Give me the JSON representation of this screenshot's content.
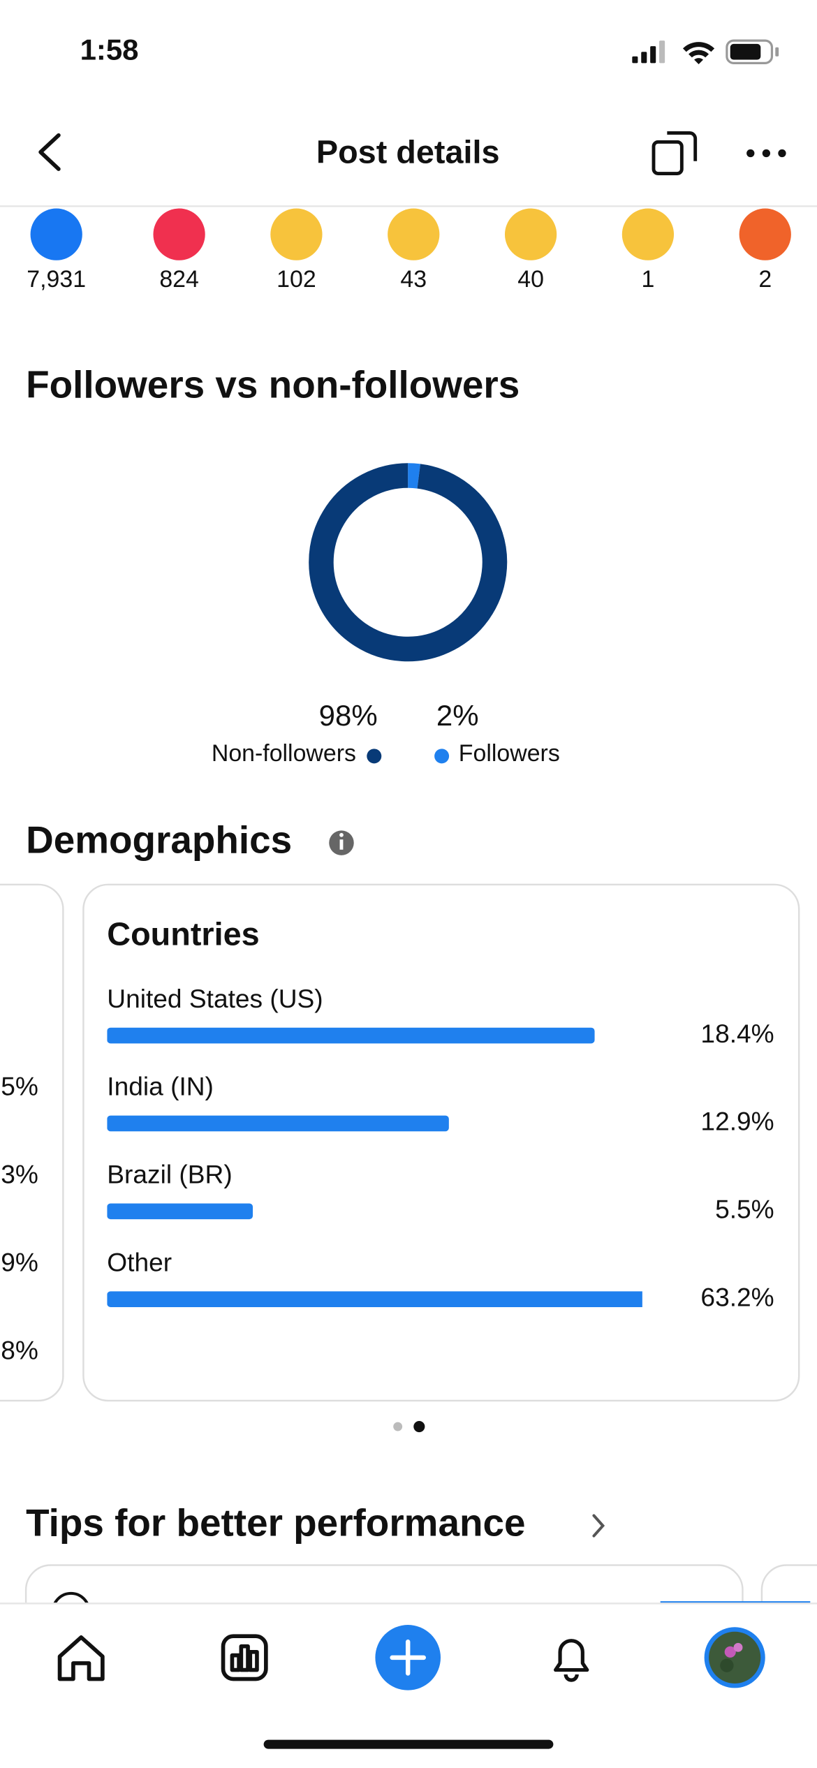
{
  "status_bar": {
    "time": "1:58"
  },
  "header": {
    "title": "Post details"
  },
  "reactions": [
    "7,931",
    "824",
    "102",
    "43",
    "40",
    "1",
    "2"
  ],
  "chart_data": [
    {
      "type": "pie",
      "title": "Followers vs non-followers",
      "categories": [
        "Non-followers",
        "Followers"
      ],
      "values": [
        98,
        2
      ],
      "value_labels": [
        "98%",
        "2%"
      ],
      "colors": [
        "#083a77",
        "#1f80ee"
      ]
    },
    {
      "type": "bar",
      "title": "Countries",
      "categories": [
        "United States (US)",
        "India (IN)",
        "Brazil (BR)",
        "Other"
      ],
      "values": [
        18.4,
        12.9,
        5.5,
        63.2
      ],
      "value_labels": [
        "18.4%",
        "12.9%",
        "5.5%",
        "63.2%"
      ],
      "color": "#1f80ee",
      "xlim": [
        0,
        20.2
      ]
    }
  ],
  "demographics": {
    "title": "Demographics",
    "partial_card_labels": [
      "5%",
      "3%",
      "9%",
      "8%"
    ]
  },
  "tips": {
    "title": "Tips for better performance"
  }
}
